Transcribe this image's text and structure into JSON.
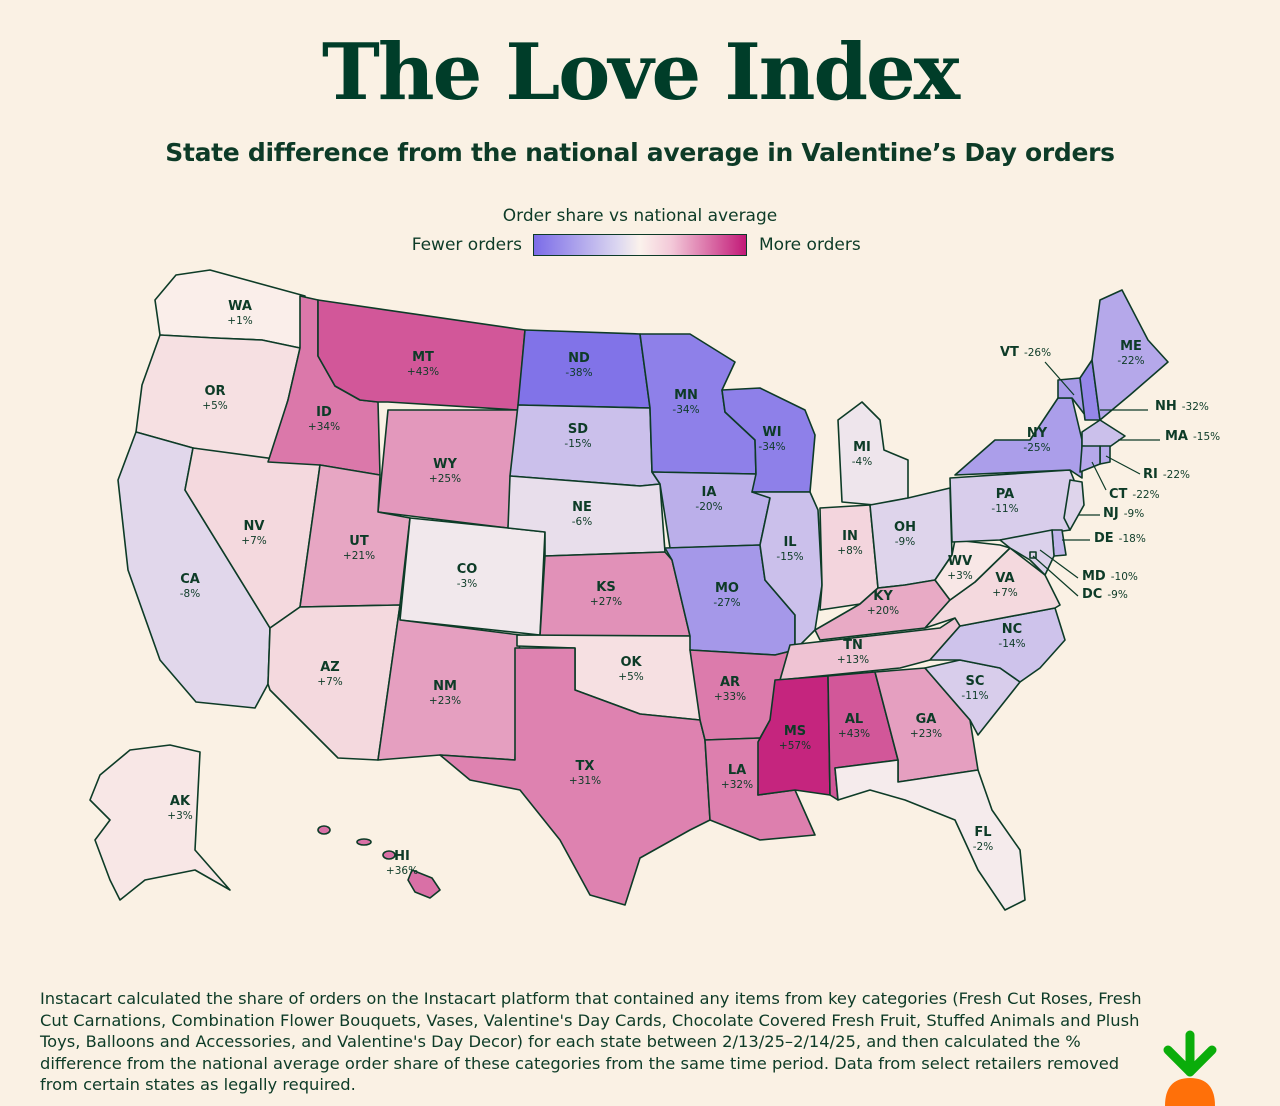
{
  "header": {
    "title": "The Love Index",
    "subtitle": "State difference from the national average in Valentine’s Day orders"
  },
  "legend": {
    "title": "Order share vs national average",
    "low_label": "Fewer orders",
    "high_label": "More orders",
    "low_color": "#7b6ce8",
    "mid_color": "#fbf2ec",
    "high_color": "#c21a78"
  },
  "footnote": "Instacart calculated the share of orders on the Instacart platform that contained any items from key categories (Fresh Cut Roses, Fresh Cut Carnations, Combination Flower Bouquets, Vases, Valentine's Day Cards, Chocolate Covered Fresh Fruit, Stuffed Animals and Plush Toys, Balloons and Accessories, and Valentine's Day Decor) for each state between 2/13/25–2/14/25, and then calculated the % difference from the national average order share of these categories from the same time period. Data from select retailers removed from certain states as legally required.",
  "logo": "carrot-logo",
  "states": {
    "WA": {
      "abbr": "WA",
      "value": "+1%",
      "pct": 1
    },
    "OR": {
      "abbr": "OR",
      "value": "+5%",
      "pct": 5
    },
    "CA": {
      "abbr": "CA",
      "value": "-8%",
      "pct": -8
    },
    "NV": {
      "abbr": "NV",
      "value": "+7%",
      "pct": 7
    },
    "ID": {
      "abbr": "ID",
      "value": "+34%",
      "pct": 34
    },
    "MT": {
      "abbr": "MT",
      "value": "+43%",
      "pct": 43
    },
    "WY": {
      "abbr": "WY",
      "value": "+25%",
      "pct": 25
    },
    "UT": {
      "abbr": "UT",
      "value": "+21%",
      "pct": 21
    },
    "AZ": {
      "abbr": "AZ",
      "value": "+7%",
      "pct": 7
    },
    "CO": {
      "abbr": "CO",
      "value": "-3%",
      "pct": -3
    },
    "NM": {
      "abbr": "NM",
      "value": "+23%",
      "pct": 23
    },
    "ND": {
      "abbr": "ND",
      "value": "-38%",
      "pct": -38
    },
    "SD": {
      "abbr": "SD",
      "value": "-15%",
      "pct": -15
    },
    "NE": {
      "abbr": "NE",
      "value": "-6%",
      "pct": -6
    },
    "KS": {
      "abbr": "KS",
      "value": "+27%",
      "pct": 27
    },
    "OK": {
      "abbr": "OK",
      "value": "+5%",
      "pct": 5
    },
    "TX": {
      "abbr": "TX",
      "value": "+31%",
      "pct": 31
    },
    "MN": {
      "abbr": "MN",
      "value": "-34%",
      "pct": -34
    },
    "IA": {
      "abbr": "IA",
      "value": "-20%",
      "pct": -20
    },
    "MO": {
      "abbr": "MO",
      "value": "-27%",
      "pct": -27
    },
    "AR": {
      "abbr": "AR",
      "value": "+33%",
      "pct": 33
    },
    "LA": {
      "abbr": "LA",
      "value": "+32%",
      "pct": 32
    },
    "WI": {
      "abbr": "WI",
      "value": "-34%",
      "pct": -34
    },
    "IL": {
      "abbr": "IL",
      "value": "-15%",
      "pct": -15
    },
    "MI": {
      "abbr": "MI",
      "value": "-4%",
      "pct": -4
    },
    "IN": {
      "abbr": "IN",
      "value": "+8%",
      "pct": 8
    },
    "OH": {
      "abbr": "OH",
      "value": "-9%",
      "pct": -9
    },
    "KY": {
      "abbr": "KY",
      "value": "+20%",
      "pct": 20
    },
    "TN": {
      "abbr": "TN",
      "value": "+13%",
      "pct": 13
    },
    "MS": {
      "abbr": "MS",
      "value": "+57%",
      "pct": 57
    },
    "AL": {
      "abbr": "AL",
      "value": "+43%",
      "pct": 43
    },
    "GA": {
      "abbr": "GA",
      "value": "+23%",
      "pct": 23
    },
    "FL": {
      "abbr": "FL",
      "value": "-2%",
      "pct": -2
    },
    "SC": {
      "abbr": "SC",
      "value": "-11%",
      "pct": -11
    },
    "NC": {
      "abbr": "NC",
      "value": "-14%",
      "pct": -14
    },
    "VA": {
      "abbr": "VA",
      "value": "+7%",
      "pct": 7
    },
    "WV": {
      "abbr": "WV",
      "value": "+3%",
      "pct": 3
    },
    "PA": {
      "abbr": "PA",
      "value": "-11%",
      "pct": -11
    },
    "NY": {
      "abbr": "NY",
      "value": "-25%",
      "pct": -25
    },
    "VT": {
      "abbr": "VT",
      "value": "-26%",
      "pct": -26
    },
    "NH": {
      "abbr": "NH",
      "value": "-32%",
      "pct": -32
    },
    "ME": {
      "abbr": "ME",
      "value": "-22%",
      "pct": -22
    },
    "MA": {
      "abbr": "MA",
      "value": "-15%",
      "pct": -15
    },
    "RI": {
      "abbr": "RI",
      "value": "-22%",
      "pct": -22
    },
    "CT": {
      "abbr": "CT",
      "value": "-22%",
      "pct": -22
    },
    "NJ": {
      "abbr": "NJ",
      "value": "-9%",
      "pct": -9
    },
    "DE": {
      "abbr": "DE",
      "value": "-18%",
      "pct": -18
    },
    "MD": {
      "abbr": "MD",
      "value": "-10%",
      "pct": -10
    },
    "DC": {
      "abbr": "DC",
      "value": "-9%",
      "pct": -9
    },
    "AK": {
      "abbr": "AK",
      "value": "+3%",
      "pct": 3
    },
    "HI": {
      "abbr": "HI",
      "value": "+36%",
      "pct": 36
    }
  }
}
